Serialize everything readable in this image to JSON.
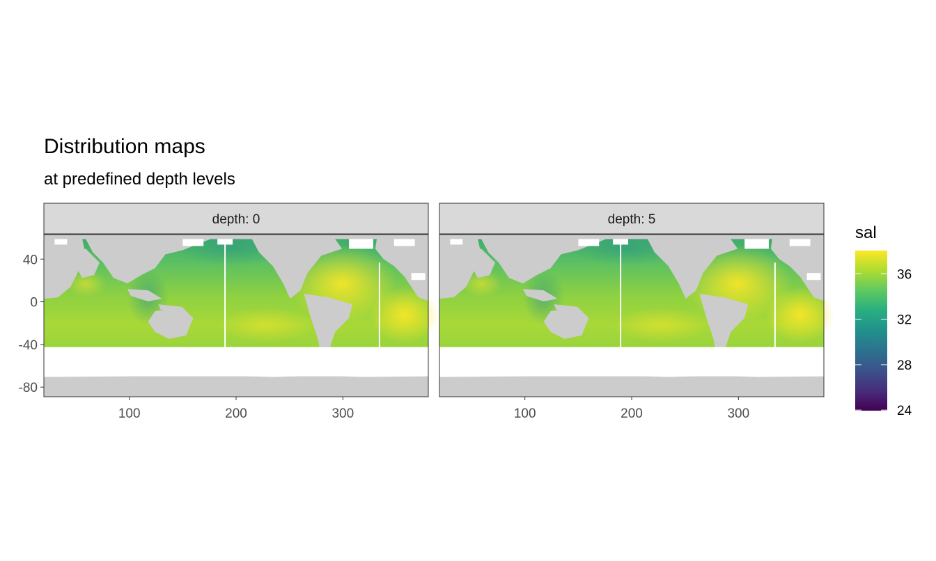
{
  "title": "Distribution maps",
  "subtitle": "at predefined depth levels",
  "chart_data": {
    "type": "heatmap",
    "variable": "sal",
    "panels": [
      {
        "label": "depth: 0",
        "depth": 0
      },
      {
        "label": "depth: 5",
        "depth": 5
      }
    ],
    "x_range": [
      20,
      380
    ],
    "y_range": [
      -89,
      63
    ],
    "x_ticks": [
      100,
      200,
      300
    ],
    "x_tick_labels": [
      "100",
      "200",
      "300"
    ],
    "y_ticks": [
      40,
      0,
      -40,
      -80
    ],
    "y_tick_labels": [
      "40",
      "0",
      "-40",
      "-80"
    ],
    "legend": {
      "title": "sal",
      "placement": "right",
      "range": [
        24,
        38
      ],
      "ticks": [
        36,
        32,
        28,
        24
      ],
      "tick_labels": [
        "36",
        "32",
        "28",
        "24"
      ],
      "colormap": [
        "#440154",
        "#472d7b",
        "#3b528b",
        "#2c728e",
        "#21918c",
        "#28ae80",
        "#5ec962",
        "#addc30",
        "#fde725"
      ]
    },
    "colors": {
      "land": "#cccccc",
      "no_data": "#ffffff",
      "strip_background": "#d9d9d9",
      "grid": "#ebebeb"
    },
    "grid": true
  }
}
